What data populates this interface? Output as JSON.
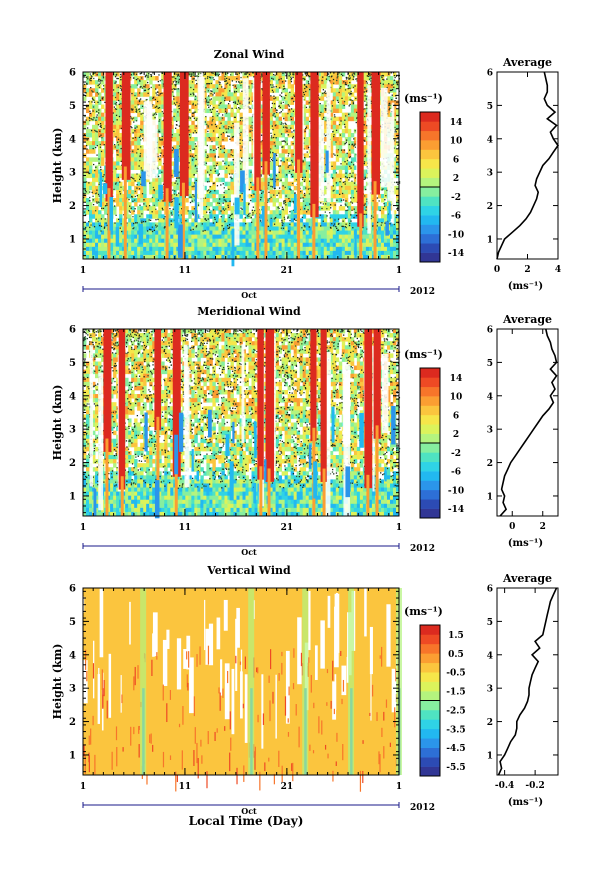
{
  "chart_data": [
    {
      "type": "heatmap",
      "title": "Zonal Wind",
      "ylabel": "Height (km)",
      "ylim": [
        0.4,
        6.0
      ],
      "yticks": [
        "1",
        "2",
        "3",
        "4",
        "5",
        "6"
      ],
      "xlim": [
        1,
        32
      ],
      "xticks": [
        "1",
        "11",
        "21",
        "1"
      ],
      "month": "Oct",
      "year": "2012",
      "colorbar": {
        "unit": "(ms⁻¹)",
        "levels": [
          -16,
          -14,
          -12,
          -10,
          -8,
          -6,
          -4,
          -2,
          0,
          2,
          4,
          6,
          8,
          10,
          12,
          14,
          16
        ],
        "labels": [
          "14",
          "10",
          "6",
          "2",
          "-2",
          "-6",
          "-10",
          "-14"
        ],
        "colors": [
          "#313695",
          "#2c4bb4",
          "#2d6fd6",
          "#2b95ea",
          "#22b8f0",
          "#2fd3e6",
          "#4fe3c2",
          "#86ef9f",
          "#b4f47e",
          "#dcf35b",
          "#f6e64a",
          "#fbc53e",
          "#fb9e32",
          "#f7752a",
          "#ee4a24",
          "#dc2a1f"
        ]
      },
      "profile": {
        "title": "Average",
        "xlabel": "(ms⁻¹)",
        "xlim": [
          0,
          4
        ],
        "xticks": [
          "0",
          "2",
          "4"
        ],
        "height": [
          0.4,
          0.6,
          0.8,
          1.0,
          1.2,
          1.4,
          1.6,
          1.8,
          2.0,
          2.2,
          2.4,
          2.6,
          2.8,
          3.0,
          3.2,
          3.4,
          3.6,
          3.8,
          4.0,
          4.2,
          4.4,
          4.6,
          4.8,
          5.0,
          5.2,
          5.4,
          5.6,
          5.8,
          6.0
        ],
        "values": [
          0.0,
          0.1,
          0.3,
          0.5,
          1.0,
          1.5,
          1.9,
          2.2,
          2.4,
          2.6,
          2.7,
          2.5,
          2.6,
          2.8,
          3.0,
          3.4,
          3.7,
          4.0,
          3.7,
          3.5,
          3.9,
          3.3,
          3.8,
          3.3,
          3.1,
          3.3,
          3.3,
          3.2,
          3.1
        ]
      }
    },
    {
      "type": "heatmap",
      "title": "Meridional Wind",
      "ylabel": "Height (km)",
      "ylim": [
        0.4,
        6.0
      ],
      "yticks": [
        "1",
        "2",
        "3",
        "4",
        "5",
        "6"
      ],
      "xlim": [
        1,
        32
      ],
      "xticks": [
        "1",
        "11",
        "21",
        "1"
      ],
      "month": "Oct",
      "year": "2012",
      "colorbar": {
        "unit": "(ms⁻¹)",
        "levels": [
          -16,
          -14,
          -12,
          -10,
          -8,
          -6,
          -4,
          -2,
          0,
          2,
          4,
          6,
          8,
          10,
          12,
          14,
          16
        ],
        "labels": [
          "14",
          "10",
          "6",
          "2",
          "-2",
          "-6",
          "-10",
          "-14"
        ],
        "colors": [
          "#313695",
          "#2c4bb4",
          "#2d6fd6",
          "#2b95ea",
          "#22b8f0",
          "#2fd3e6",
          "#4fe3c2",
          "#86ef9f",
          "#b4f47e",
          "#dcf35b",
          "#f6e64a",
          "#fbc53e",
          "#fb9e32",
          "#f7752a",
          "#ee4a24",
          "#dc2a1f"
        ]
      },
      "profile": {
        "title": "Average",
        "xlabel": "(ms⁻¹)",
        "xlim": [
          -1,
          3
        ],
        "xticks": [
          "0",
          "2"
        ],
        "height": [
          0.4,
          0.6,
          0.8,
          1.0,
          1.2,
          1.4,
          1.6,
          1.8,
          2.0,
          2.2,
          2.4,
          2.6,
          2.8,
          3.0,
          3.2,
          3.4,
          3.6,
          3.8,
          4.0,
          4.2,
          4.4,
          4.6,
          4.8,
          5.0,
          5.2,
          5.4,
          5.6,
          5.8,
          6.0
        ],
        "values": [
          -0.8,
          -0.4,
          -0.6,
          -0.5,
          -0.7,
          -0.6,
          -0.5,
          -0.3,
          -0.1,
          0.2,
          0.5,
          0.8,
          1.1,
          1.4,
          1.7,
          2.0,
          2.4,
          2.7,
          2.5,
          2.8,
          2.6,
          2.9,
          2.5,
          2.9,
          2.8,
          2.6,
          2.5,
          2.3,
          2.2
        ]
      }
    },
    {
      "type": "heatmap",
      "title": "Vertical Wind",
      "ylabel": "Height (km)",
      "xlabel": "Local Time (Day)",
      "ylim": [
        0.4,
        6.0
      ],
      "yticks": [
        "1",
        "2",
        "3",
        "4",
        "5",
        "6"
      ],
      "xlim": [
        1,
        32
      ],
      "xticks": [
        "1",
        "11",
        "21",
        "1"
      ],
      "month": "Oct",
      "year": "2012",
      "colorbar": {
        "unit": "(ms⁻¹)",
        "levels": [
          -6,
          -5.5,
          -5,
          -4.5,
          -4,
          -3.5,
          -3,
          -2.5,
          -2,
          -1.5,
          -1,
          -0.5,
          0,
          0.5,
          1,
          1.5,
          2
        ],
        "labels": [
          "1.5",
          "0.5",
          "-0.5",
          "-1.5",
          "-2.5",
          "-3.5",
          "-4.5",
          "-5.5"
        ],
        "colors": [
          "#313695",
          "#2c4bb4",
          "#2d6fd6",
          "#2b95ea",
          "#22b8f0",
          "#2fd3e6",
          "#4fe3c2",
          "#86ef9f",
          "#b4f47e",
          "#dcf35b",
          "#f6e64a",
          "#fbc53e",
          "#fb9e32",
          "#f7752a",
          "#ee4a24",
          "#dc2a1f"
        ]
      },
      "profile": {
        "title": "Average",
        "xlabel": "(ms⁻¹)",
        "xlim": [
          -0.45,
          -0.05
        ],
        "xticks": [
          "-0.4",
          "-0.2"
        ],
        "height": [
          0.4,
          0.6,
          0.8,
          1.0,
          1.2,
          1.4,
          1.6,
          1.8,
          2.0,
          2.2,
          2.4,
          2.6,
          2.8,
          3.0,
          3.2,
          3.4,
          3.6,
          3.8,
          4.0,
          4.2,
          4.4,
          4.6,
          4.8,
          5.0,
          5.2,
          5.4,
          5.6,
          5.8,
          6.0
        ],
        "values": [
          -0.44,
          -0.42,
          -0.43,
          -0.4,
          -0.38,
          -0.36,
          -0.33,
          -0.32,
          -0.32,
          -0.3,
          -0.27,
          -0.25,
          -0.24,
          -0.24,
          -0.23,
          -0.22,
          -0.2,
          -0.18,
          -0.22,
          -0.17,
          -0.2,
          -0.15,
          -0.14,
          -0.13,
          -0.12,
          -0.11,
          -0.1,
          -0.08,
          -0.06
        ]
      }
    }
  ]
}
